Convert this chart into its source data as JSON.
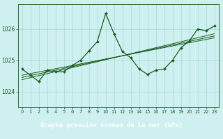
{
  "title": "Graphe pression niveau de la mer (hPa)",
  "bg_color": "#cff0f0",
  "label_bg_color": "#2d6a2d",
  "label_text_color": "#ffffff",
  "grid_color": "#a0d8d8",
  "line_color": "#1a5c1a",
  "xlim": [
    -0.5,
    23.5
  ],
  "ylim": [
    1023.5,
    1026.8
  ],
  "yticks": [
    1024,
    1025,
    1026
  ],
  "xticks": [
    0,
    1,
    2,
    3,
    4,
    5,
    6,
    7,
    8,
    9,
    10,
    11,
    12,
    13,
    14,
    15,
    16,
    17,
    18,
    19,
    20,
    21,
    22,
    23
  ],
  "main_x": [
    0,
    1,
    2,
    3,
    4,
    5,
    6,
    7,
    8,
    9,
    10,
    11,
    12,
    13,
    14,
    15,
    16,
    17,
    18,
    19,
    20,
    21,
    22,
    23
  ],
  "main_y": [
    1024.72,
    1024.52,
    1024.32,
    1024.68,
    1024.63,
    1024.63,
    1024.83,
    1025.0,
    1025.3,
    1025.6,
    1026.5,
    1025.85,
    1025.28,
    1025.08,
    1024.72,
    1024.55,
    1024.68,
    1024.72,
    1025.0,
    1025.4,
    1025.62,
    1026.0,
    1025.95,
    1026.1
  ],
  "trend1_x": [
    0,
    23
  ],
  "trend1_y": [
    1024.52,
    1025.72
  ],
  "trend2_x": [
    0,
    23
  ],
  "trend2_y": [
    1024.45,
    1025.78
  ],
  "trend3_x": [
    0,
    23
  ],
  "trend3_y": [
    1024.38,
    1025.85
  ]
}
